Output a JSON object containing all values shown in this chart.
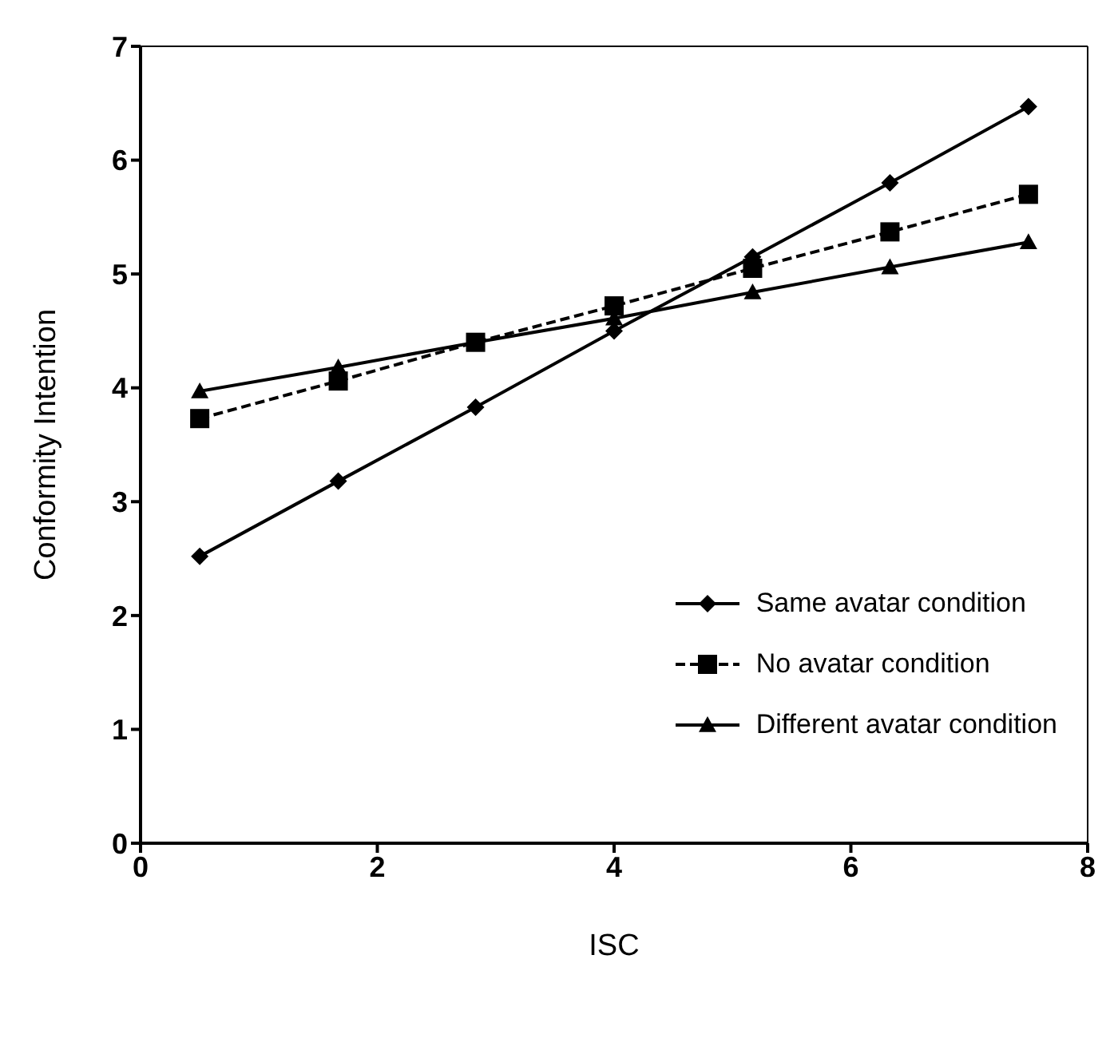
{
  "chart_data": {
    "type": "line",
    "xlabel": "ISC",
    "ylabel": "Conformity Intention",
    "x": [
      0.5,
      1.67,
      2.83,
      4.0,
      5.17,
      6.33,
      7.5
    ],
    "series": [
      {
        "name": "Same avatar condition",
        "color": "#000000",
        "marker": "diamond",
        "line_style": "solid",
        "values": [
          2.52,
          3.18,
          3.83,
          4.5,
          5.15,
          5.8,
          6.47
        ]
      },
      {
        "name": "No  avatar condition",
        "color": "#000000",
        "marker": "square",
        "line_style": "dashed",
        "values": [
          3.73,
          4.06,
          4.4,
          4.72,
          5.05,
          5.37,
          5.7
        ]
      },
      {
        "name": "Different avatar condition",
        "color": "#000000",
        "marker": "triangle",
        "line_style": "solid",
        "values": [
          3.97,
          4.18,
          4.4,
          4.61,
          4.84,
          5.06,
          5.28
        ]
      }
    ],
    "xlim": [
      0,
      8
    ],
    "xticks": [
      0,
      2,
      4,
      6,
      8
    ],
    "ylim": [
      0,
      7
    ],
    "yticks": [
      0,
      1,
      2,
      3,
      4,
      5,
      6,
      7
    ],
    "grid": false,
    "legend": "bottom right"
  }
}
